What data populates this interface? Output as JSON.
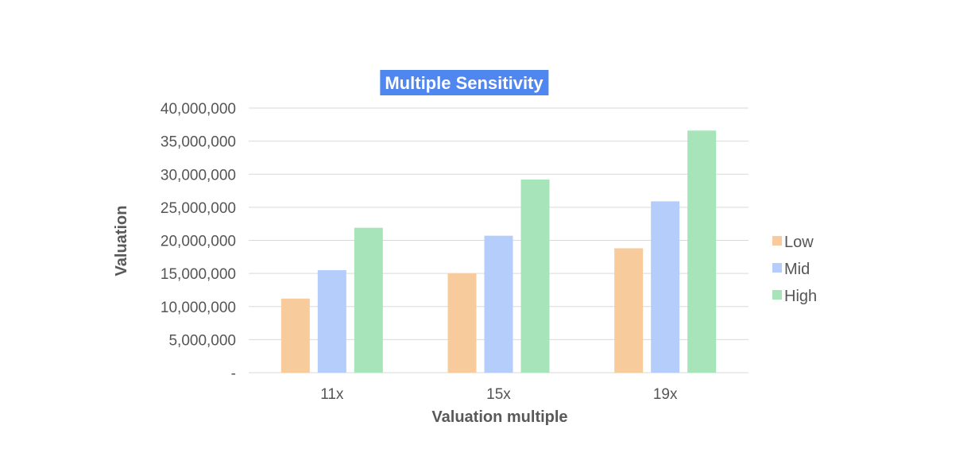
{
  "chart_data": {
    "type": "bar",
    "title": "Multiple Sensitivity",
    "xlabel": "Valuation multiple",
    "ylabel": "Valuation",
    "categories": [
      "11x",
      "15x",
      "19x"
    ],
    "series": [
      {
        "name": "Low",
        "color": "#f8cb9c",
        "values": [
          11200000,
          15000000,
          18800000
        ]
      },
      {
        "name": "Mid",
        "color": "#b4cdfa",
        "values": [
          15500000,
          20700000,
          25900000
        ]
      },
      {
        "name": "High",
        "color": "#a7e4b9",
        "values": [
          21900000,
          29200000,
          36600000
        ]
      }
    ],
    "ylim": [
      0,
      40000000
    ],
    "yticks": [
      0,
      5000000,
      10000000,
      15000000,
      20000000,
      25000000,
      30000000,
      35000000,
      40000000
    ],
    "ytick_labels": [
      "-",
      "5,000,000",
      "10,000,000",
      "15,000,000",
      "20,000,000",
      "25,000,000",
      "30,000,000",
      "35,000,000",
      "40,000,000"
    ],
    "grid": true,
    "legend_position": "right",
    "title_style": {
      "background": "#4f86f0",
      "color": "#ffffff"
    }
  }
}
